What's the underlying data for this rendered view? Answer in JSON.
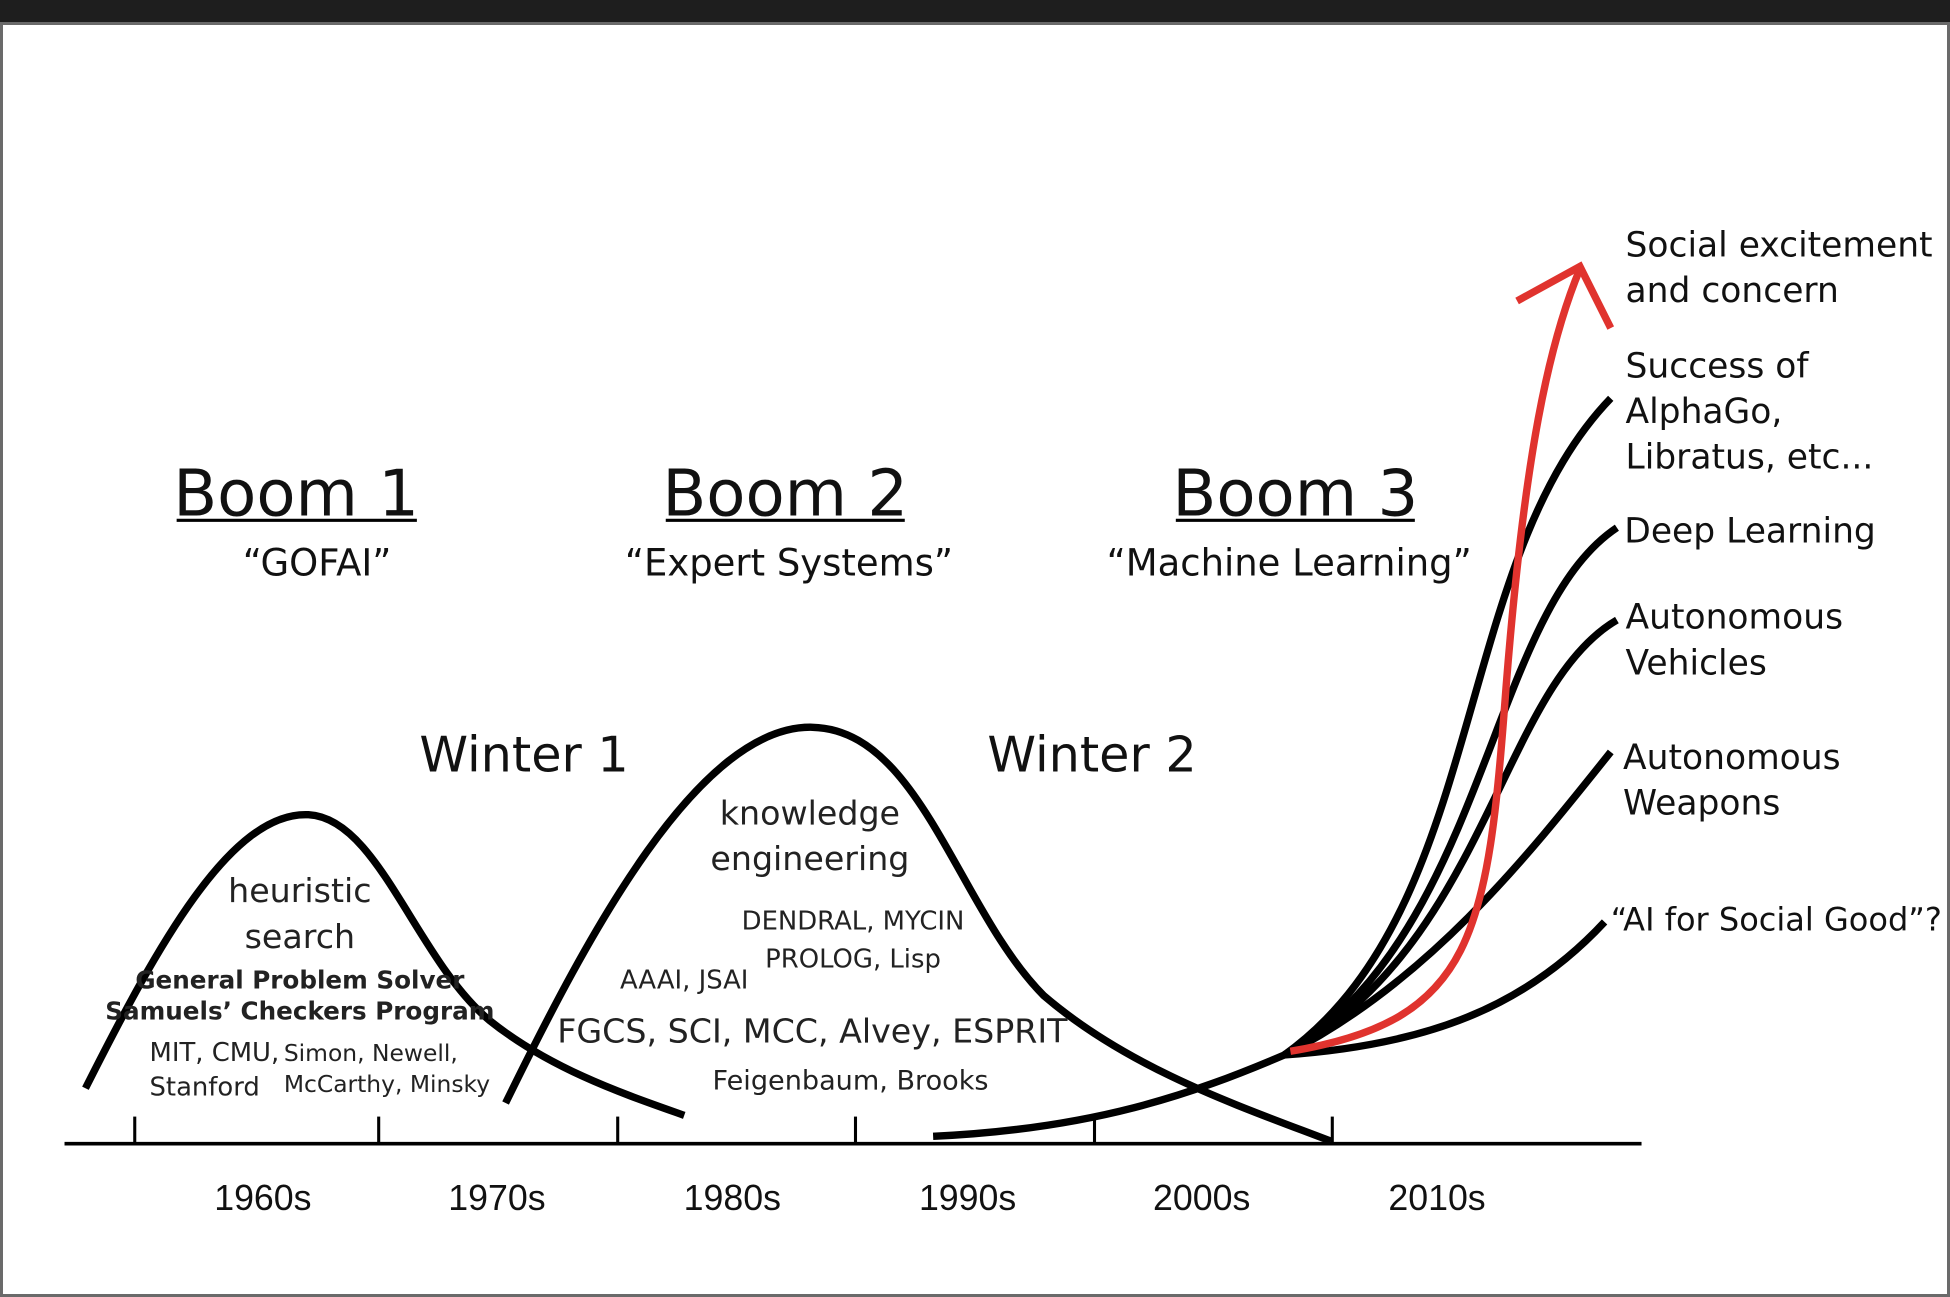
{
  "booms": [
    {
      "title": "Boom 1",
      "subtitle": "“GOFAI”"
    },
    {
      "title": "Boom 2",
      "subtitle": "“Expert Systems”"
    },
    {
      "title": "Boom 3",
      "subtitle": "“Machine Learning”"
    }
  ],
  "winters": [
    "Winter 1",
    "Winter 2"
  ],
  "boom1_notes": {
    "topic_line1": "heuristic",
    "topic_line2": "search",
    "program1": "General Problem Solver",
    "program2": "Samuels’ Checkers Program",
    "institutions_line1": "MIT, CMU,",
    "institutions_line2": "Stanford",
    "people_line1": "Simon, Newell,",
    "people_line2": "McCarthy, Minsky"
  },
  "boom2_notes": {
    "topic_line1": "knowledge",
    "topic_line2": "engineering",
    "systems": "DENDRAL, MYCIN",
    "languages": "PROLOG, Lisp",
    "societies": "AAAI, JSAI",
    "projects": "FGCS, SCI, MCC, Alvey, ESPRIT",
    "people": "Feigenbaum, Brooks"
  },
  "axis_labels": [
    "1960s",
    "1970s",
    "1980s",
    "1990s",
    "2000s",
    "2010s"
  ],
  "branches": [
    {
      "line1": "Social excitement",
      "line2": "and concern",
      "color": "#e0332e"
    },
    {
      "line1": "Success of",
      "line2": "AlphaGo,",
      "line3": "Libratus, etc..."
    },
    {
      "line1": "Deep Learning"
    },
    {
      "line1": "Autonomous",
      "line2": "Vehicles"
    },
    {
      "line1": "Autonomous",
      "line2": "Weapons"
    },
    {
      "line1": "“AI for Social Good”?"
    }
  ],
  "colors": {
    "curve": "#000000",
    "highlight": "#e0332e"
  }
}
